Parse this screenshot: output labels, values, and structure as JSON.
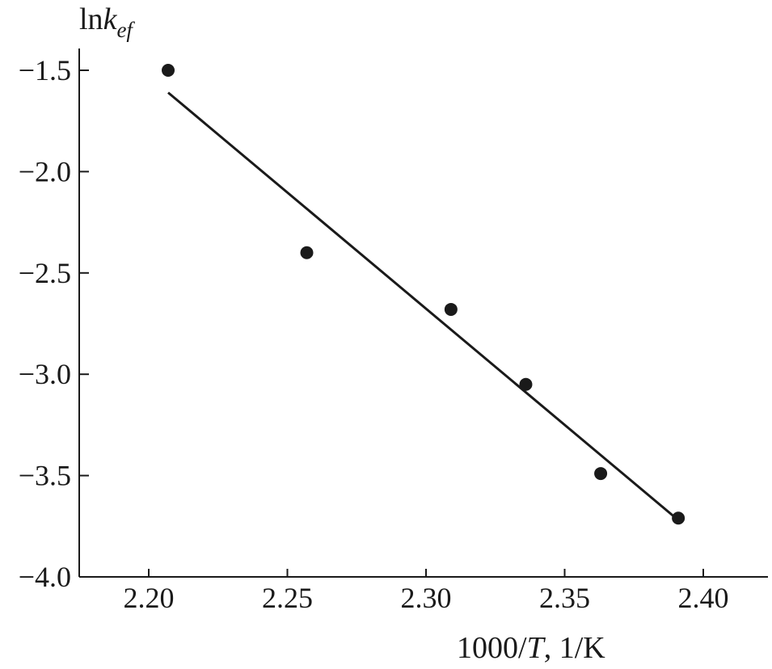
{
  "chart_data": {
    "type": "scatter",
    "ylabel_main": "ln",
    "ylabel_k": "k",
    "ylabel_sub": "ef",
    "xlabel_main": "1000/",
    "xlabel_T": "T",
    "xlabel_unit": ", 1/K",
    "xlim": [
      2.175,
      2.425
    ],
    "ylim": [
      -4.0,
      -1.3
    ],
    "x_ticks": [
      2.2,
      2.25,
      2.3,
      2.35,
      2.4
    ],
    "x_tick_labels": [
      "2.20",
      "2.25",
      "2.30",
      "2.35",
      "2.40"
    ],
    "y_ticks": [
      -1.5,
      -2.0,
      -2.5,
      -3.0,
      -3.5,
      -4.0
    ],
    "y_tick_labels": [
      "−1.5",
      "−2.0",
      "−2.5",
      "−3.0",
      "−3.5",
      "−4.0"
    ],
    "series": [
      {
        "x": [
          2.207,
          2.257,
          2.309,
          2.336,
          2.363,
          2.391
        ],
        "y": [
          -1.5,
          -2.4,
          -2.68,
          -3.05,
          -3.49,
          -3.71
        ]
      }
    ],
    "fit_line": {
      "x": [
        2.207,
        2.391
      ],
      "y": [
        -1.61,
        -3.72
      ]
    },
    "grid": false
  }
}
